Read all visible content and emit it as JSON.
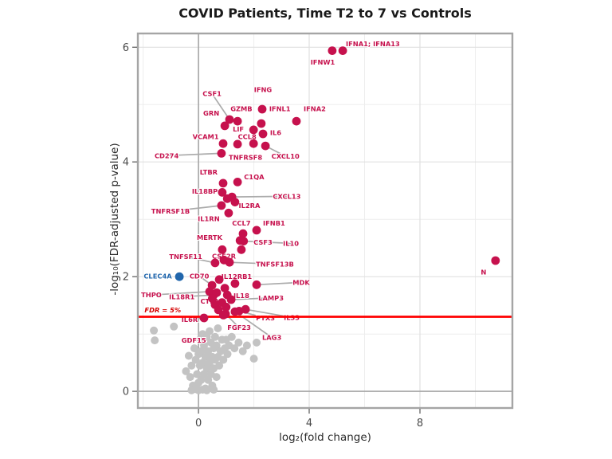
{
  "chart_data": {
    "type": "scatter",
    "title": "COVID Patients, Time T2 to 7 vs Controls",
    "xlabel": "log₂(fold change)",
    "ylabel": "-log₁₀(FDR-adjusted p-value)",
    "xlim": [
      -2.19,
      11.34
    ],
    "ylim": [
      -0.29,
      6.24
    ],
    "x_major_ticks": [
      0,
      4,
      8
    ],
    "y_major_ticks": [
      0,
      2,
      4,
      6
    ],
    "x_minor_gridlines": [
      -2,
      2,
      6,
      10
    ],
    "y_minor_gridlines": [
      1,
      3,
      5
    ],
    "grid": true,
    "threshold": {
      "y": 1.301,
      "label": "FDR = 5%",
      "label_x": -1.29,
      "label_y": 1.42
    },
    "series": [
      {
        "name": "significant",
        "color": "#C6114D",
        "points": [
          {
            "gene": "IFNW1",
            "x": 4.83,
            "y": 5.94
          },
          {
            "gene": "IFNA1; IFNA13",
            "x": 5.21,
            "y": 5.94
          },
          {
            "gene": "IFNG",
            "x": 2.3,
            "y": 4.92
          },
          {
            "gene": "CSF1",
            "x": 1.12,
            "y": 4.74
          },
          {
            "gene": "GZMB",
            "x": 1.41,
            "y": 4.71
          },
          {
            "gene": "IFNL1",
            "x": 2.27,
            "y": 4.67
          },
          {
            "gene": "IFNA2",
            "x": 3.54,
            "y": 4.71
          },
          {
            "gene": "GRN",
            "x": 0.95,
            "y": 4.63
          },
          {
            "gene": "LIF",
            "x": 1.99,
            "y": 4.56
          },
          {
            "gene": "IL6",
            "x": 2.33,
            "y": 4.49
          },
          {
            "gene": "VCAM1",
            "x": 0.89,
            "y": 4.32
          },
          {
            "gene": "CCL8",
            "x": 1.99,
            "y": 4.32
          },
          {
            "gene": "TNFRSF8",
            "x": 1.41,
            "y": 4.31
          },
          {
            "gene": "CXCL10",
            "x": 2.42,
            "y": 4.28
          },
          {
            "gene": "CD274",
            "x": 0.83,
            "y": 4.15
          },
          {
            "gene": "LTBR",
            "x": 0.89,
            "y": 3.63
          },
          {
            "gene": "C1QA",
            "x": 1.41,
            "y": 3.65
          },
          {
            "gene": "IL18BP",
            "x": 0.86,
            "y": 3.47
          },
          {
            "gene": "CXCL13",
            "x": 1.21,
            "y": 3.39
          },
          {
            "gene": "IL2RA",
            "x": 1.32,
            "y": 3.3
          },
          {
            "gene": "TNFRSF1B",
            "x": 0.83,
            "y": 3.24
          },
          {
            "gene": "IL1RN",
            "x": 1.09,
            "y": 3.11
          },
          {
            "gene": "CCL7",
            "x": 1.61,
            "y": 2.75
          },
          {
            "gene": "IFNB1",
            "x": 2.1,
            "y": 2.81
          },
          {
            "gene": "MERTK",
            "x": 0.86,
            "y": 2.47
          },
          {
            "gene": "CSF3",
            "x": 1.5,
            "y": 2.63
          },
          {
            "gene": "IL10",
            "x": 1.63,
            "y": 2.62
          },
          {
            "gene": "TNFSF11",
            "x": 0.6,
            "y": 2.24
          },
          {
            "gene": "CSF2R",
            "x": 0.92,
            "y": 2.29
          },
          {
            "gene": "TNFSF13B",
            "x": 1.12,
            "y": 2.25
          },
          {
            "gene": "CD70",
            "x": 0.49,
            "y": 1.85
          },
          {
            "gene": "IL12RB1",
            "x": 1.32,
            "y": 1.88
          },
          {
            "gene": "MDK",
            "x": 2.1,
            "y": 1.86
          },
          {
            "gene": "THPO",
            "x": 0.4,
            "y": 1.74
          },
          {
            "gene": "IL18R1",
            "x": 0.55,
            "y": 1.68
          },
          {
            "gene": "IL18",
            "x": 1.04,
            "y": 1.68
          },
          {
            "gene": "LAMP3",
            "x": 1.18,
            "y": 1.6
          },
          {
            "gene": "CTLA4",
            "x": 0.6,
            "y": 1.51
          },
          {
            "gene": "IL6R",
            "x": 0.2,
            "y": 1.28
          },
          {
            "gene": "PTX3",
            "x": 1.47,
            "y": 1.4
          },
          {
            "gene": "IL33",
            "x": 1.7,
            "y": 1.43
          },
          {
            "gene": "FGF23",
            "x": 0.98,
            "y": 1.35
          },
          {
            "gene": "LAG3",
            "x": 1.32,
            "y": 1.39
          },
          {
            "gene": "N",
            "x": 10.73,
            "y": 2.28
          },
          {
            "gene": null,
            "x": 0.75,
            "y": 1.95
          },
          {
            "gene": null,
            "x": 0.95,
            "y": 1.8
          },
          {
            "gene": null,
            "x": 0.66,
            "y": 1.72
          },
          {
            "gene": null,
            "x": 0.85,
            "y": 1.55
          },
          {
            "gene": null,
            "x": 0.72,
            "y": 1.42
          },
          {
            "gene": null,
            "x": 1.0,
            "y": 1.47
          },
          {
            "gene": null,
            "x": 0.5,
            "y": 1.62
          },
          {
            "gene": null,
            "x": 0.9,
            "y": 1.33
          },
          {
            "gene": null,
            "x": 1.55,
            "y": 2.47
          },
          {
            "gene": null,
            "x": 1.04,
            "y": 3.36
          }
        ]
      },
      {
        "name": "highlighted",
        "color": "#2166AC",
        "points": [
          {
            "gene": "CLEC4A",
            "x": -0.69,
            "y": 2.0
          }
        ]
      },
      {
        "name": "not-significant",
        "color": "#C3C3C3",
        "points": [
          [
            -1.61,
            1.06
          ],
          [
            -0.89,
            1.13
          ],
          [
            -1.58,
            0.89
          ],
          [
            -0.45,
            0.35
          ],
          [
            -0.35,
            0.62
          ],
          [
            -0.3,
            0.25
          ],
          [
            -0.25,
            0.45
          ],
          [
            -0.25,
            0.02
          ],
          [
            -0.2,
            0.1
          ],
          [
            -0.15,
            0.75
          ],
          [
            -0.1,
            0.55
          ],
          [
            -0.1,
            0.04
          ],
          [
            -0.05,
            0.3
          ],
          [
            0,
            0.15
          ],
          [
            0,
            0.65
          ],
          [
            0,
            0.02
          ],
          [
            0.05,
            0.45
          ],
          [
            0.05,
            0.9
          ],
          [
            0.1,
            0.2
          ],
          [
            0.1,
            0.7
          ],
          [
            0.15,
            0.5
          ],
          [
            0.15,
            1.0
          ],
          [
            0.15,
            0.03
          ],
          [
            0.2,
            0.3
          ],
          [
            0.2,
            0.8
          ],
          [
            0.25,
            0.6
          ],
          [
            0.25,
            0.05
          ],
          [
            0.3,
            0.4
          ],
          [
            0.3,
            0.95
          ],
          [
            0.3,
            0.02
          ],
          [
            0.35,
            0.7
          ],
          [
            0.35,
            0.2
          ],
          [
            0.4,
            0.5
          ],
          [
            0.4,
            1.05
          ],
          [
            0.45,
            0.85
          ],
          [
            0.45,
            0.3
          ],
          [
            0.5,
            0.6
          ],
          [
            0.5,
            0.1
          ],
          [
            0.55,
            0.75
          ],
          [
            0.55,
            0.4
          ],
          [
            0.55,
            0.03
          ],
          [
            0.6,
            0.95
          ],
          [
            0.6,
            0.55
          ],
          [
            0.65,
            0.25
          ],
          [
            0.65,
            0.8
          ],
          [
            0.7,
            0.6
          ],
          [
            0.7,
            1.1
          ],
          [
            0.75,
            0.45
          ],
          [
            0.8,
            0.7
          ],
          [
            0.85,
            0.9
          ],
          [
            0.9,
            0.55
          ],
          [
            0.95,
            0.75
          ],
          [
            1.0,
            0.9
          ],
          [
            1.05,
            0.65
          ],
          [
            1.1,
            0.8
          ],
          [
            1.2,
            0.95
          ],
          [
            1.3,
            0.75
          ],
          [
            1.45,
            0.85
          ],
          [
            1.6,
            0.7
          ],
          [
            1.75,
            0.8
          ],
          [
            2.0,
            0.57
          ],
          [
            2.1,
            0.85
          ]
        ]
      }
    ],
    "labels": [
      {
        "t": "IFNA1; IFNA13",
        "x": 6.3,
        "y": 6.06
      },
      {
        "t": "IFNW1",
        "x": 4.49,
        "y": 5.74
      },
      {
        "t": "IFNG",
        "x": 2.33,
        "y": 5.26
      },
      {
        "t": "CSF1",
        "x": 0.49,
        "y": 5.19,
        "to": [
          1.12,
          4.74
        ]
      },
      {
        "t": "GZMB",
        "x": 1.55,
        "y": 4.93
      },
      {
        "t": "IFNL1",
        "x": 2.94,
        "y": 4.93
      },
      {
        "t": "IFNA2",
        "x": 4.2,
        "y": 4.93
      },
      {
        "t": "GRN",
        "x": 0.46,
        "y": 4.85
      },
      {
        "t": "LIF",
        "x": 1.44,
        "y": 4.57
      },
      {
        "t": "IL6",
        "x": 2.79,
        "y": 4.51
      },
      {
        "t": "CCL8",
        "x": 1.76,
        "y": 4.44
      },
      {
        "t": "VCAM1",
        "x": 0.26,
        "y": 4.44
      },
      {
        "t": "TNFRSF8",
        "x": 1.7,
        "y": 4.08
      },
      {
        "t": "CXCL10",
        "x": 3.14,
        "y": 4.1,
        "to": [
          2.42,
          4.28
        ]
      },
      {
        "t": "CD274",
        "x": -1.15,
        "y": 4.11,
        "to": [
          0.83,
          4.15
        ]
      },
      {
        "t": "LTBR",
        "x": 0.37,
        "y": 3.82
      },
      {
        "t": "C1QA",
        "x": 2.01,
        "y": 3.74
      },
      {
        "t": "IL18BP",
        "x": 0.23,
        "y": 3.49
      },
      {
        "t": "CXCL13",
        "x": 3.19,
        "y": 3.4,
        "to": [
          1.21,
          3.39
        ]
      },
      {
        "t": "IL2RA",
        "x": 1.84,
        "y": 3.24
      },
      {
        "t": "TNFRSF1B",
        "x": -1.01,
        "y": 3.14,
        "to": [
          0.83,
          3.24
        ]
      },
      {
        "t": "IL1RN",
        "x": 0.37,
        "y": 3.01
      },
      {
        "t": "CCL7",
        "x": 1.55,
        "y": 2.93
      },
      {
        "t": "IFNB1",
        "x": 2.73,
        "y": 2.93
      },
      {
        "t": "MERTK",
        "x": 0.4,
        "y": 2.68
      },
      {
        "t": "CSF3",
        "x": 2.33,
        "y": 2.6
      },
      {
        "t": "IL10",
        "x": 3.34,
        "y": 2.58,
        "to": [
          1.63,
          2.62
        ]
      },
      {
        "t": "TNFSF11",
        "x": -0.46,
        "y": 2.35,
        "to": [
          0.6,
          2.24
        ]
      },
      {
        "t": "CSF2R",
        "x": 0.92,
        "y": 2.36
      },
      {
        "t": "TNFSF13B",
        "x": 2.76,
        "y": 2.22,
        "to": [
          1.12,
          2.25
        ]
      },
      {
        "t": "CLEC4A",
        "x": -1.47,
        "y": 2.01,
        "c": "blue"
      },
      {
        "t": "CD70",
        "x": 0.03,
        "y": 2.01,
        "to": [
          0.49,
          1.85
        ]
      },
      {
        "t": "IL12RB1",
        "x": 1.38,
        "y": 2.0
      },
      {
        "t": "MDK",
        "x": 3.71,
        "y": 1.9,
        "to": [
          2.1,
          1.86
        ]
      },
      {
        "t": "THPO",
        "x": -1.7,
        "y": 1.68,
        "to": [
          0.4,
          1.74
        ]
      },
      {
        "t": "IL18R1",
        "x": -0.6,
        "y": 1.65,
        "to": [
          0.55,
          1.68
        ]
      },
      {
        "t": "IL18",
        "x": 1.55,
        "y": 1.67
      },
      {
        "t": "LAMP3",
        "x": 2.62,
        "y": 1.63,
        "to": [
          1.18,
          1.6
        ]
      },
      {
        "t": "CTLA4",
        "x": 0.49,
        "y": 1.57
      },
      {
        "t": "IL6R",
        "x": -0.32,
        "y": 1.25,
        "to": [
          0.2,
          1.28
        ]
      },
      {
        "t": "PTX3",
        "x": 2.42,
        "y": 1.28,
        "to": [
          1.47,
          1.4
        ]
      },
      {
        "t": "IL33",
        "x": 3.37,
        "y": 1.29,
        "to": [
          1.7,
          1.43
        ]
      },
      {
        "t": "FGF23",
        "x": 1.47,
        "y": 1.11,
        "to": [
          0.98,
          1.35
        ]
      },
      {
        "t": "LAG3",
        "x": 2.65,
        "y": 0.94,
        "to": [
          1.32,
          1.39
        ]
      },
      {
        "t": "GDF15",
        "x": -0.17,
        "y": 0.89
      },
      {
        "t": "N",
        "x": 10.3,
        "y": 2.08
      }
    ]
  },
  "colors": {
    "significant": "#C6114D",
    "highlight": "#2166AC",
    "not_significant": "#C3C3C3",
    "threshold_line": "#FF0000",
    "threshold_text": "#D40000",
    "leader": "#ABABAB",
    "grid_minor": "#EDEDED",
    "grid_major": "#E0E0E0",
    "zero_line": "#A6A6A6",
    "panel_border": "#A5A5A5",
    "tick": "#6E6E6E"
  }
}
